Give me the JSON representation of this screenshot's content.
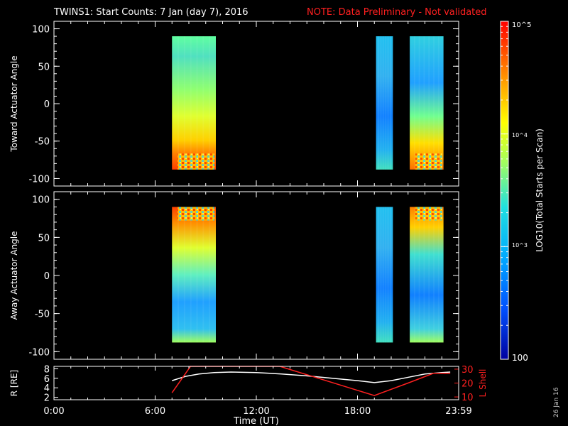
{
  "title": {
    "main": "TWINS1: Start Counts:  7 Jan (day   7), 2016",
    "note": "NOTE: Data Preliminary - Not validated",
    "note_color": "#ff2020"
  },
  "date_stamp": "26 Jan 16",
  "colorbar": {
    "label": "LOG10(Total Starts per Scan)",
    "ticks": [
      "10^5",
      "10^4",
      "10^3",
      "100"
    ],
    "range": [
      100,
      100000
    ],
    "scale": "log"
  },
  "chart_data": [
    {
      "type": "heatmap",
      "ylabel": "Toward Actuator Angle",
      "ylim": [
        -110,
        110
      ],
      "yticks": [
        100,
        50,
        0,
        -50,
        -100
      ],
      "xlim": [
        0,
        24
      ],
      "x_range_label": "Time (UT)",
      "scale": "log counts",
      "data_blocks": [
        {
          "start_hr": 7.0,
          "end_hr": 9.6,
          "theme": "warm"
        },
        {
          "start_hr": 19.1,
          "end_hr": 20.1,
          "theme": "cool"
        },
        {
          "start_hr": 21.1,
          "end_hr": 23.1,
          "theme": "mixed"
        }
      ]
    },
    {
      "type": "heatmap",
      "ylabel": "Away Actuator Angle",
      "ylim": [
        -110,
        110
      ],
      "yticks": [
        100,
        50,
        0,
        -50,
        -100
      ],
      "xlim": [
        0,
        24
      ],
      "data_blocks": [
        {
          "start_hr": 7.0,
          "end_hr": 9.6,
          "theme": "warm-top"
        },
        {
          "start_hr": 19.1,
          "end_hr": 20.1,
          "theme": "cool"
        },
        {
          "start_hr": 21.1,
          "end_hr": 23.1,
          "theme": "mixed-top"
        }
      ]
    },
    {
      "type": "line",
      "ylabel_left": "R [RE]",
      "ylabel_right": "L Shell",
      "ylim_left": [
        1.5,
        8.5
      ],
      "yticks_left": [
        2,
        4,
        6,
        8
      ],
      "ylim_right": [
        8,
        32
      ],
      "yticks_right": [
        10,
        20,
        30
      ],
      "xlim": [
        0,
        24
      ],
      "xticks": [
        "0:00",
        "6:00",
        "12:00",
        "18:00",
        "23:59"
      ],
      "xtick_values": [
        0,
        6,
        12,
        18,
        24
      ],
      "xlabel": "Time (UT)",
      "series": [
        {
          "color": "#ffffff",
          "x": [
            7.0,
            7.8,
            8.6,
            9.5,
            10.5,
            12.0,
            13.5,
            15.0,
            16.5,
            18.0,
            19.0,
            20.0,
            21.0,
            22.0,
            23.0,
            23.5
          ],
          "y": [
            5.5,
            6.4,
            6.9,
            7.2,
            7.3,
            7.2,
            6.9,
            6.5,
            6.0,
            5.5,
            5.1,
            5.5,
            6.2,
            6.9,
            7.2,
            7.3
          ]
        },
        {
          "color": "#ff2020",
          "x": [
            7.0,
            8.1,
            13.4,
            19.0,
            21.0,
            22.5,
            23.5
          ],
          "y": [
            13,
            32,
            32,
            11,
            20,
            27,
            27
          ]
        }
      ]
    }
  ]
}
